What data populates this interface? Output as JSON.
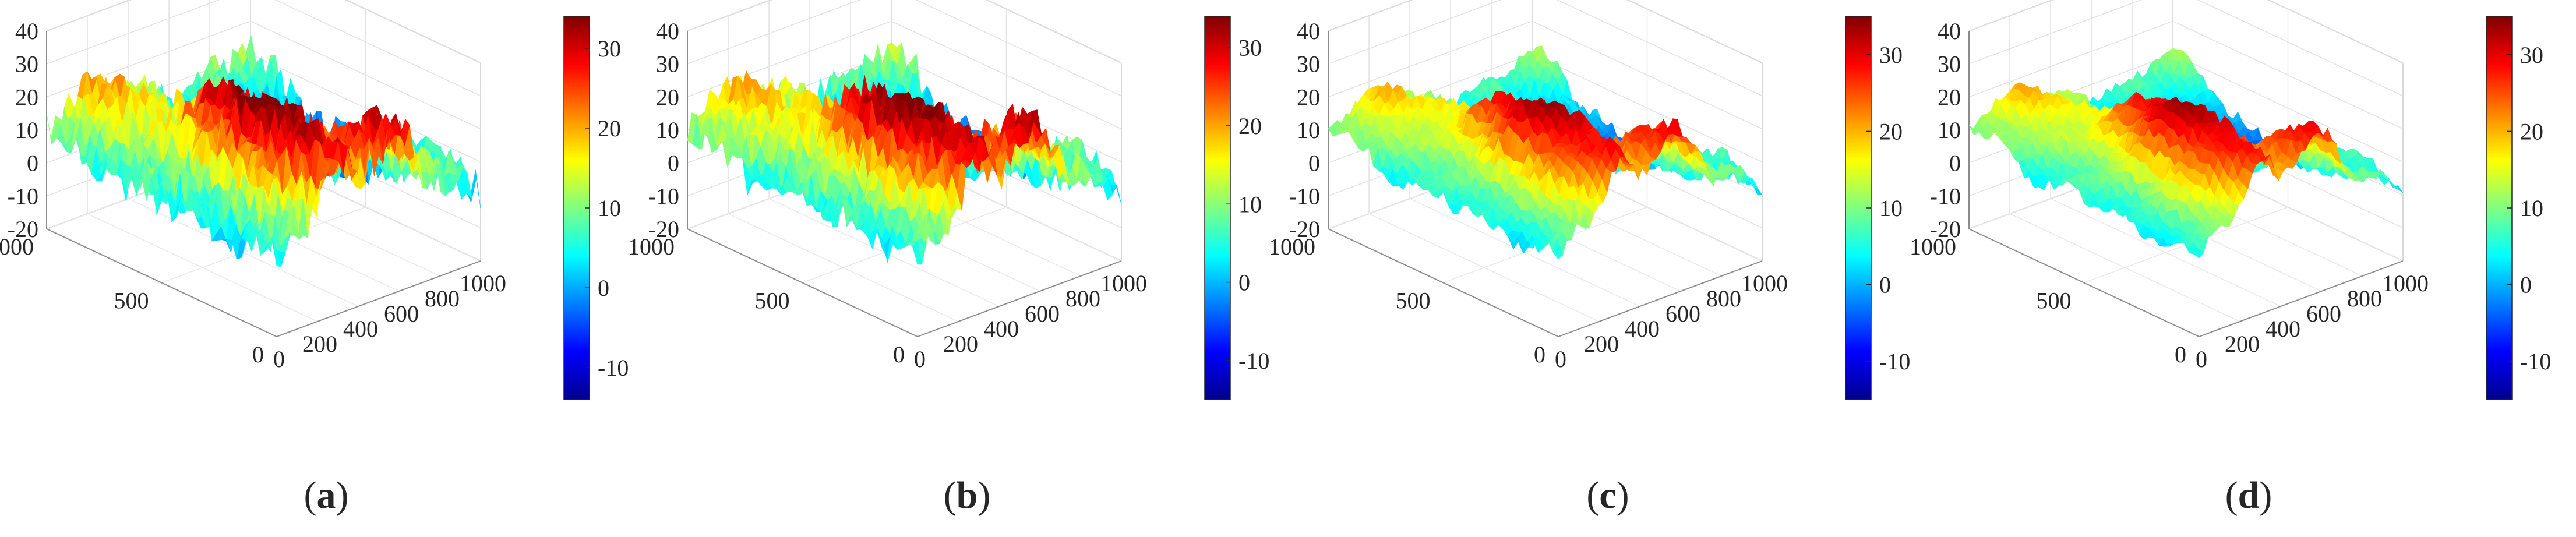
{
  "figure": {
    "panel_count": 4
  },
  "colormap": [
    "#00008f",
    "#0000ff",
    "#0080ff",
    "#00ffff",
    "#80ff80",
    "#ffff00",
    "#ff8000",
    "#ff0000",
    "#800000"
  ],
  "chart_data": [
    {
      "type": "surface3d",
      "caption_open": "(",
      "caption_letter": "a",
      "caption_close": ")",
      "z_ticks": [
        "40",
        "30",
        "20",
        "10",
        "0",
        "-10",
        "-20"
      ],
      "z_range": [
        -20,
        40
      ],
      "x_ticks": [
        "0",
        "200",
        "400",
        "600",
        "800",
        "1000"
      ],
      "y_ticks": [
        "1000",
        "500",
        "0"
      ],
      "x_range": [
        0,
        1000
      ],
      "y_range": [
        0,
        1000
      ],
      "colorbar_ticks": [
        "30",
        "20",
        "10",
        "0",
        "-10"
      ],
      "colorbar_range": [
        -14,
        34
      ],
      "surface": {
        "peak": 35,
        "minimum": -14,
        "roughness": 0.9
      }
    },
    {
      "type": "surface3d",
      "caption_open": "(",
      "caption_letter": "b",
      "caption_close": ")",
      "z_ticks": [
        "40",
        "30",
        "20",
        "10",
        "0",
        "-10",
        "-20"
      ],
      "z_range": [
        -20,
        40
      ],
      "x_ticks": [
        "0",
        "200",
        "400",
        "600",
        "800",
        "1000"
      ],
      "y_ticks": [
        "1000",
        "500",
        "0"
      ],
      "x_range": [
        0,
        1000
      ],
      "y_range": [
        0,
        1000
      ],
      "colorbar_ticks": [
        "30",
        "20",
        "10",
        "0",
        "-10"
      ],
      "colorbar_range": [
        -15,
        34
      ],
      "surface": {
        "peak": 36,
        "minimum": -12,
        "roughness": 0.8
      }
    },
    {
      "type": "surface3d",
      "caption_open": "(",
      "caption_letter": "c",
      "caption_close": ")",
      "z_ticks": [
        "40",
        "30",
        "20",
        "10",
        "0",
        "-10",
        "-20"
      ],
      "z_range": [
        -20,
        40
      ],
      "x_ticks": [
        "0",
        "200",
        "400",
        "600",
        "800",
        "1000"
      ],
      "y_ticks": [
        "1000",
        "500",
        "0"
      ],
      "x_range": [
        0,
        1000
      ],
      "y_range": [
        0,
        1000
      ],
      "colorbar_ticks": [
        "30",
        "20",
        "10",
        "0",
        "-10"
      ],
      "colorbar_range": [
        -15,
        35
      ],
      "surface": {
        "peak": 34,
        "minimum": -8,
        "roughness": 0.35
      }
    },
    {
      "type": "surface3d",
      "caption_open": "(",
      "caption_letter": "d",
      "caption_close": ")",
      "z_ticks": [
        "40",
        "30",
        "20",
        "10",
        "0",
        "-10",
        "-20"
      ],
      "z_range": [
        -20,
        40
      ],
      "x_ticks": [
        "0",
        "200",
        "400",
        "600",
        "800",
        "1000"
      ],
      "y_ticks": [
        "1000",
        "500",
        "0"
      ],
      "x_range": [
        0,
        1000
      ],
      "y_range": [
        0,
        1000
      ],
      "colorbar_ticks": [
        "30",
        "20",
        "10",
        "0",
        "-10"
      ],
      "colorbar_range": [
        -15,
        35
      ],
      "surface": {
        "peak": 34,
        "minimum": -8,
        "roughness": 0.25
      }
    }
  ]
}
